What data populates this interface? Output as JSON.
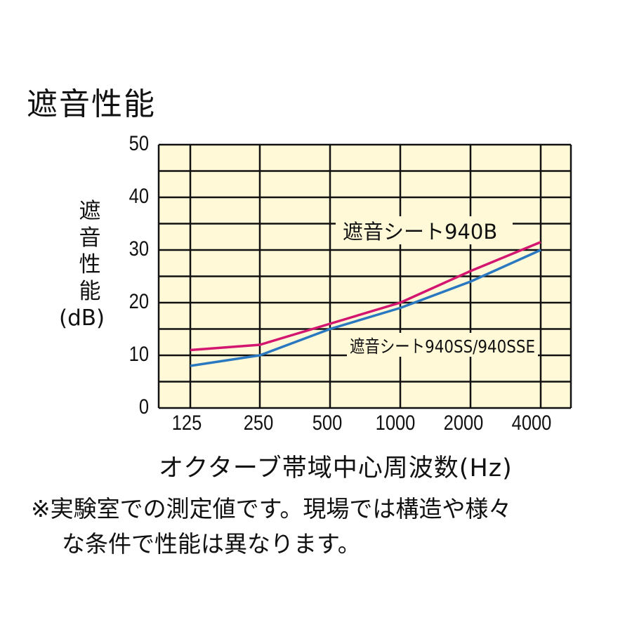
{
  "title": "遮音性能",
  "y_axis": {
    "label_chars": [
      "遮",
      "音",
      "性",
      "能"
    ],
    "unit": "(dB)",
    "ticks": [
      "50",
      "40",
      "30",
      "20",
      "10",
      "0"
    ]
  },
  "x_axis": {
    "label": "オクターブ帯域中心周波数(Hz)",
    "ticks": [
      "125",
      "250",
      "500",
      "1000",
      "2000",
      "4000"
    ]
  },
  "series_labels": {
    "s940b": "遮音シート940B",
    "s940ss": "遮音シート940SS/940SSE"
  },
  "note": {
    "line1": "※実験室での測定値です。現場では構造や様々",
    "line2": "な条件で性能は異なります。"
  },
  "colors": {
    "plot_bg": "#fff9d8",
    "grid": "#111111",
    "s940b": "#d3166f",
    "s940ss": "#2a78bf"
  },
  "chart_data": {
    "type": "line",
    "title": "遮音性能",
    "xlabel": "オクターブ帯域中心周波数(Hz)",
    "ylabel": "遮音性能(dB)",
    "categories": [
      "125",
      "250",
      "500",
      "1000",
      "2000",
      "4000"
    ],
    "series": [
      {
        "name": "遮音シート940B",
        "color": "#d3166f",
        "values": [
          11,
          12,
          16,
          20,
          26,
          31.5
        ]
      },
      {
        "name": "遮音シート940SS/940SSE",
        "color": "#2a78bf",
        "values": [
          8,
          10,
          15,
          19,
          24,
          30
        ]
      }
    ],
    "ylim": [
      0,
      50
    ],
    "yticks": [
      0,
      10,
      20,
      30,
      40,
      50
    ],
    "grid": true,
    "grid_minor_y_step": 5,
    "legend_position": "inline labels near lines"
  }
}
